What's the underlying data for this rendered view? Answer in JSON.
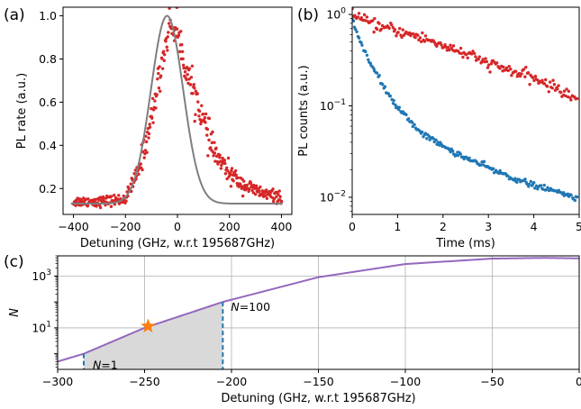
{
  "panel_labels": {
    "a": "(a)",
    "b": "(b)",
    "c": "(c)"
  },
  "colors": {
    "red": "#d62728",
    "blue": "#1f77b4",
    "gray": "#7f7f7f",
    "purple": "#9467bd",
    "star": "#ff7f0e",
    "shade": "#d9d9d9",
    "grid": "#b0b0b0"
  },
  "chart_data": [
    {
      "panel": "a",
      "type": "scatter",
      "xlabel": "Detuning (GHz, w.r.t 195687GHz)",
      "ylabel": "PL rate (a.u.)",
      "xlim": [
        -440,
        440
      ],
      "ylim": [
        0.08,
        1.04
      ],
      "xticks": [
        -400,
        -200,
        0,
        200,
        400
      ],
      "xtick_labels": [
        "−400",
        "−200",
        "0",
        "200",
        "400"
      ],
      "yticks": [
        0.2,
        0.4,
        0.6,
        0.8,
        1.0
      ],
      "ytick_labels": [
        "0.2",
        "0.4",
        "0.6",
        "0.8",
        "1.0"
      ],
      "grid": false,
      "series": [
        {
          "kind": "points",
          "color": "red",
          "x_range": [
            -400,
            400
          ],
          "n_points": 400,
          "x": [
            -400,
            -300,
            -200,
            -150,
            -100,
            -60,
            -30,
            0,
            20,
            40,
            60,
            80,
            100,
            130,
            160,
            200,
            250,
            300,
            350,
            400
          ],
          "y": [
            0.14,
            0.14,
            0.15,
            0.28,
            0.52,
            0.78,
            0.96,
            0.93,
            0.82,
            0.72,
            0.66,
            0.6,
            0.51,
            0.4,
            0.33,
            0.27,
            0.22,
            0.19,
            0.17,
            0.16
          ]
        },
        {
          "kind": "line",
          "color": "gray",
          "model": "gaussian",
          "center": -40,
          "sigma": 62,
          "amplitude": 0.87,
          "offset": 0.13
        }
      ]
    },
    {
      "panel": "b",
      "type": "scatter",
      "xlabel": "Time (ms)",
      "ylabel": "PL counts (a.u.)",
      "xlim": [
        0,
        5
      ],
      "ylim": [
        0.0065,
        1.2
      ],
      "yscale": "log",
      "xticks": [
        0,
        1,
        2,
        3,
        4,
        5
      ],
      "xtick_labels": [
        "0",
        "1",
        "2",
        "3",
        "4",
        "5"
      ],
      "yticks": [
        0.01,
        0.1,
        1
      ],
      "grid": false,
      "series": [
        {
          "kind": "points",
          "color": "red",
          "x_range": [
            0,
            4.95
          ],
          "n_points": 200,
          "x": [
            0,
            0.25,
            0.5,
            1,
            1.5,
            2,
            2.5,
            3,
            3.5,
            4,
            4.5,
            4.95
          ],
          "y": [
            1.0,
            0.85,
            0.76,
            0.66,
            0.56,
            0.46,
            0.37,
            0.29,
            0.24,
            0.2,
            0.155,
            0.12
          ]
        },
        {
          "kind": "points",
          "color": "blue",
          "x_range": [
            0,
            4.95
          ],
          "n_points": 200,
          "x": [
            0,
            0.25,
            0.5,
            0.75,
            1,
            1.5,
            2,
            2.5,
            3,
            3.5,
            4,
            4.5,
            4.95
          ],
          "y": [
            0.85,
            0.42,
            0.24,
            0.145,
            0.095,
            0.052,
            0.036,
            0.027,
            0.021,
            0.0165,
            0.0135,
            0.0115,
            0.0098
          ]
        }
      ]
    },
    {
      "panel": "c",
      "type": "line",
      "xlabel": "Detuning (GHz, w.r.t 195687GHz)",
      "ylabel": "N",
      "xlim": [
        -300,
        0
      ],
      "ylim": [
        0.25,
        6000
      ],
      "yscale": "log",
      "xticks": [
        -300,
        -250,
        -200,
        -150,
        -100,
        -50,
        0
      ],
      "xtick_labels": [
        "−300",
        "−250",
        "−200",
        "−150",
        "−100",
        "−50",
        "0"
      ],
      "yticks": [
        10,
        1000
      ],
      "grid": true,
      "series": [
        {
          "kind": "line",
          "color": "purple",
          "x": [
            -300,
            -285,
            -250,
            -205,
            -150,
            -100,
            -50,
            -20,
            0
          ],
          "y": [
            0.5,
            1,
            10,
            100,
            900,
            2900,
            4700,
            5000,
            4800
          ]
        }
      ],
      "shaded_region": {
        "x_from": -285,
        "x_to": -205
      },
      "markers": [
        {
          "x": -285,
          "label_italic": "N",
          "label_rest": "=1",
          "y": 1
        },
        {
          "x": -205,
          "label_italic": "N",
          "label_rest": "=100",
          "y": 100
        }
      ],
      "star": {
        "x": -248,
        "y": 11.5
      }
    }
  ]
}
